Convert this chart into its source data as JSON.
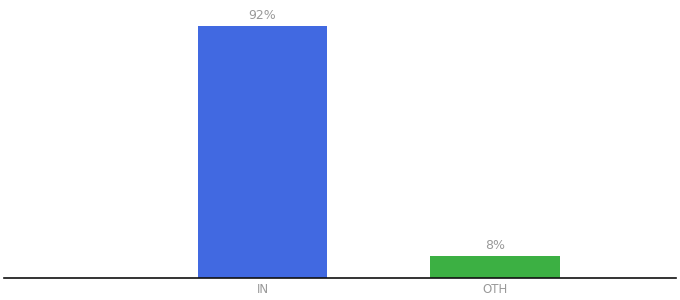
{
  "categories": [
    "IN",
    "OTH"
  ],
  "values": [
    92,
    8
  ],
  "bar_colors": [
    "#4169e1",
    "#3cb043"
  ],
  "label_texts": [
    "92%",
    "8%"
  ],
  "label_color": "#999999",
  "label_fontsize": 9,
  "tick_fontsize": 8.5,
  "tick_color": "#999999",
  "background_color": "#ffffff",
  "ylim": [
    0,
    100
  ],
  "bar_width": 0.5,
  "figsize": [
    6.8,
    3.0
  ],
  "dpi": 100,
  "xlim": [
    -0.8,
    1.8
  ],
  "bar_positions": [
    0.2,
    1.1
  ]
}
